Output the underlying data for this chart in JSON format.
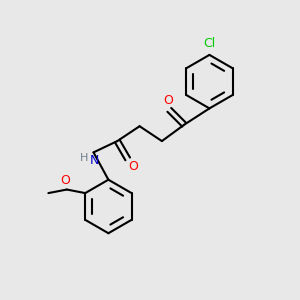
{
  "background_color": "#e8e8e8",
  "bond_color": "#000000",
  "atom_colors": {
    "O": "#ff0000",
    "N": "#0000cc",
    "Cl": "#00cc00",
    "H": "#708090",
    "C": "#000000"
  },
  "figsize": [
    3.0,
    3.0
  ],
  "dpi": 100
}
